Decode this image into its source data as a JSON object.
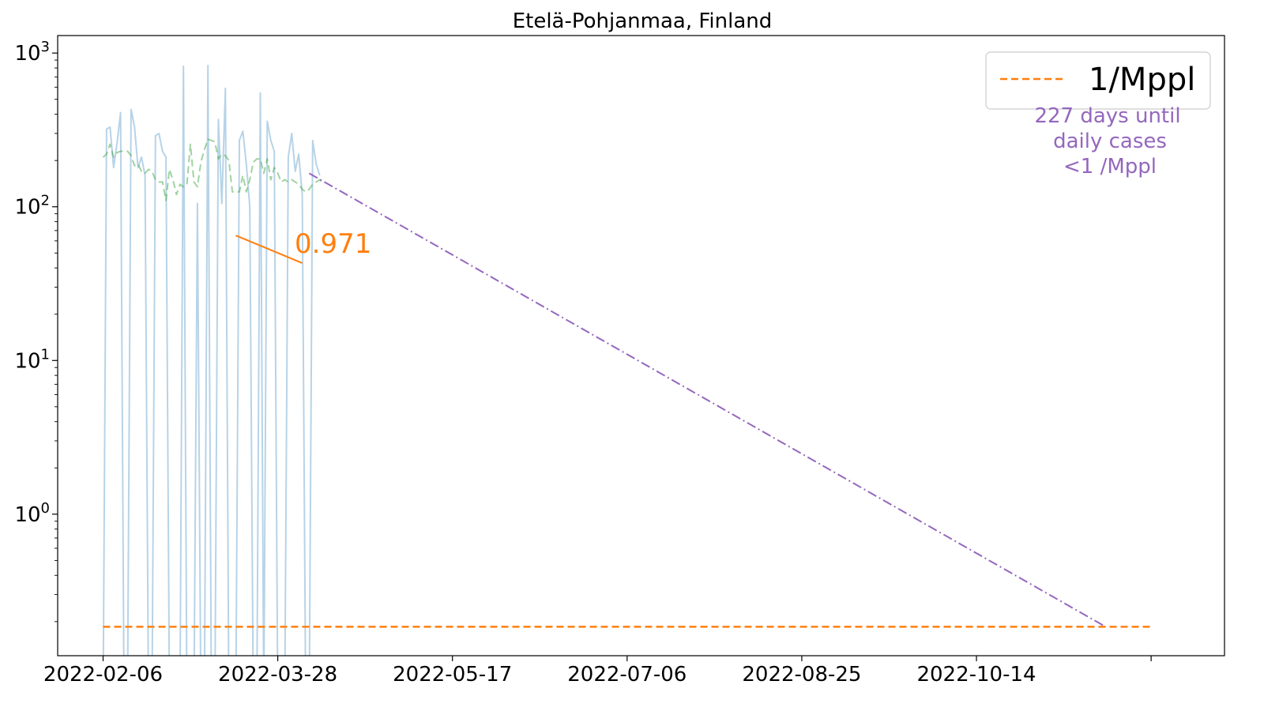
{
  "chart_data": {
    "type": "line",
    "title": "Etelä-Pohjanmaa, Finland",
    "xlabel": "",
    "ylabel": "",
    "y_scale": "log",
    "ylim": [
      0.12,
      1300
    ],
    "xlim": [
      "2022-01-24",
      "2022-12-24"
    ],
    "x_ticks": [
      "2022-02-06",
      "2022-03-28",
      "2022-05-17",
      "2022-07-06",
      "2022-08-25",
      "2022-10-14",
      "2022-12-03"
    ],
    "x_tick_labels": [
      "2022-02-06",
      "2022-03-28",
      "2022-05-17",
      "2022-07-06",
      "2022-08-25",
      "2022-10-14",
      ""
    ],
    "y_ticks": [
      1,
      10,
      100,
      1000
    ],
    "y_tick_labels": [
      {
        "base": "10",
        "exp": "0"
      },
      {
        "base": "10",
        "exp": "1"
      },
      {
        "base": "10",
        "exp": "2"
      },
      {
        "base": "10",
        "exp": "3"
      }
    ],
    "legend": {
      "position": "top-right",
      "entries": [
        {
          "label": "1/Mppl",
          "color": "#ff7f0e",
          "style": "dashed"
        }
      ]
    },
    "annotations": {
      "slope_label": "0.971",
      "days_text": [
        "227 days until",
        "daily cases",
        "<1 /Mppl"
      ]
    },
    "series": [
      {
        "kind": "daily",
        "color": "#1f77b4",
        "start": "2022-02-06",
        "values": [
          0,
          320,
          330,
          180,
          260,
          410,
          0,
          0,
          430,
          330,
          180,
          210,
          160,
          0,
          0,
          290,
          300,
          230,
          210,
          0,
          0,
          0,
          0,
          820,
          0,
          0,
          0,
          105,
          0,
          0,
          830,
          0,
          0,
          370,
          105,
          590,
          0,
          0,
          0,
          270,
          310,
          190,
          100,
          0,
          0,
          550,
          0,
          360,
          270,
          230,
          0,
          0,
          0,
          210,
          300,
          170,
          220,
          120,
          0,
          0,
          270,
          190,
          160
        ]
      },
      {
        "kind": "rolling-average",
        "color": "#2ca02c",
        "style": "dashed",
        "start": "2022-02-06",
        "values": [
          210,
          220,
          255,
          210,
          225,
          230,
          230,
          230,
          215,
          185,
          190,
          170,
          165,
          175,
          170,
          150,
          145,
          145,
          110,
          175,
          150,
          120,
          140,
          135,
          140,
          255,
          145,
          135,
          195,
          235,
          275,
          270,
          265,
          205,
          220,
          215,
          200,
          125,
          125,
          125,
          160,
          125,
          150,
          195,
          205,
          205,
          165,
          205,
          150,
          180,
          165,
          145,
          150,
          145,
          150,
          145,
          140,
          130,
          125,
          130,
          140,
          145,
          150,
          140
        ]
      },
      {
        "kind": "projection",
        "color": "#9467bd",
        "style": "dashdot",
        "x": [
          "2022-04-06",
          "2022-11-20"
        ],
        "values": [
          165,
          0.185
        ]
      },
      {
        "kind": "slope-segment",
        "color": "#ff7f0e",
        "x": [
          "2022-03-16",
          "2022-04-04"
        ],
        "values": [
          65,
          43
        ]
      },
      {
        "kind": "threshold",
        "name": "1/Mppl",
        "color": "#ff7f0e",
        "style": "dashed",
        "x": [
          "2022-02-06",
          "2022-12-03"
        ],
        "values": [
          0.185,
          0.185
        ]
      }
    ]
  }
}
